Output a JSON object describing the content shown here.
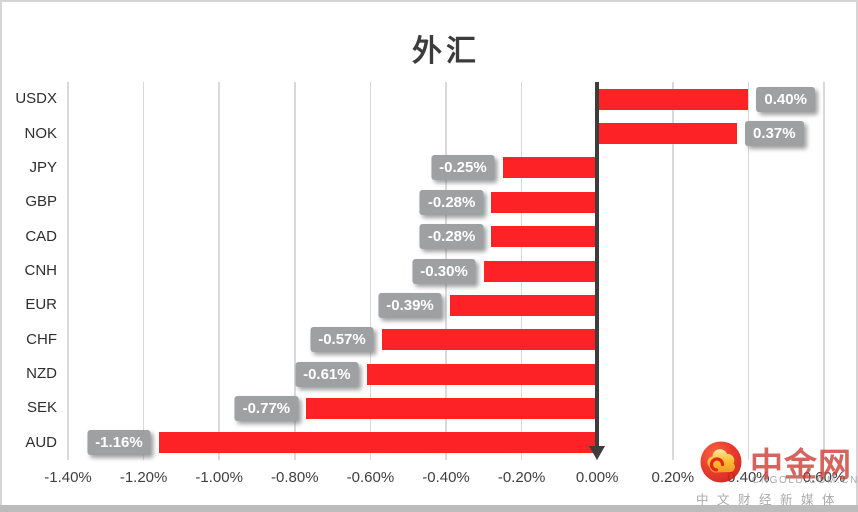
{
  "chart_data": {
    "type": "bar",
    "orientation": "horizontal",
    "title": "外汇",
    "categories": [
      "USDX",
      "NOK",
      "JPY",
      "GBP",
      "CAD",
      "CNH",
      "EUR",
      "CHF",
      "NZD",
      "SEK",
      "AUD"
    ],
    "values": [
      0.4,
      0.37,
      -0.25,
      -0.28,
      -0.28,
      -0.3,
      -0.39,
      -0.57,
      -0.61,
      -0.77,
      -1.16
    ],
    "value_labels": [
      "0.40%",
      "0.37%",
      "-0.25%",
      "-0.28%",
      "-0.28%",
      "-0.30%",
      "-0.39%",
      "-0.57%",
      "-0.61%",
      "-0.77%",
      "-1.16%"
    ],
    "x_ticks": [
      "-1.40%",
      "-1.20%",
      "-1.00%",
      "-0.80%",
      "-0.60%",
      "-0.40%",
      "-0.20%",
      "0.00%",
      "0.20%",
      "0.40%",
      "0.60%"
    ],
    "xlim": [
      -1.4,
      0.6
    ],
    "grid": true,
    "legend": false,
    "bar_color": "#fc2226",
    "badge_color": "#9fa0a2",
    "badge_text_color": "#ffffff",
    "zero_axis_color": "#3d3d3d",
    "gridline_color": "#d9d9d9"
  },
  "watermark": {
    "logo_icon": "cngold-cloud-logo",
    "brand": "中金网",
    "domain": "CNGOLD.COM.CN",
    "tagline": "中文财经新媒体"
  }
}
